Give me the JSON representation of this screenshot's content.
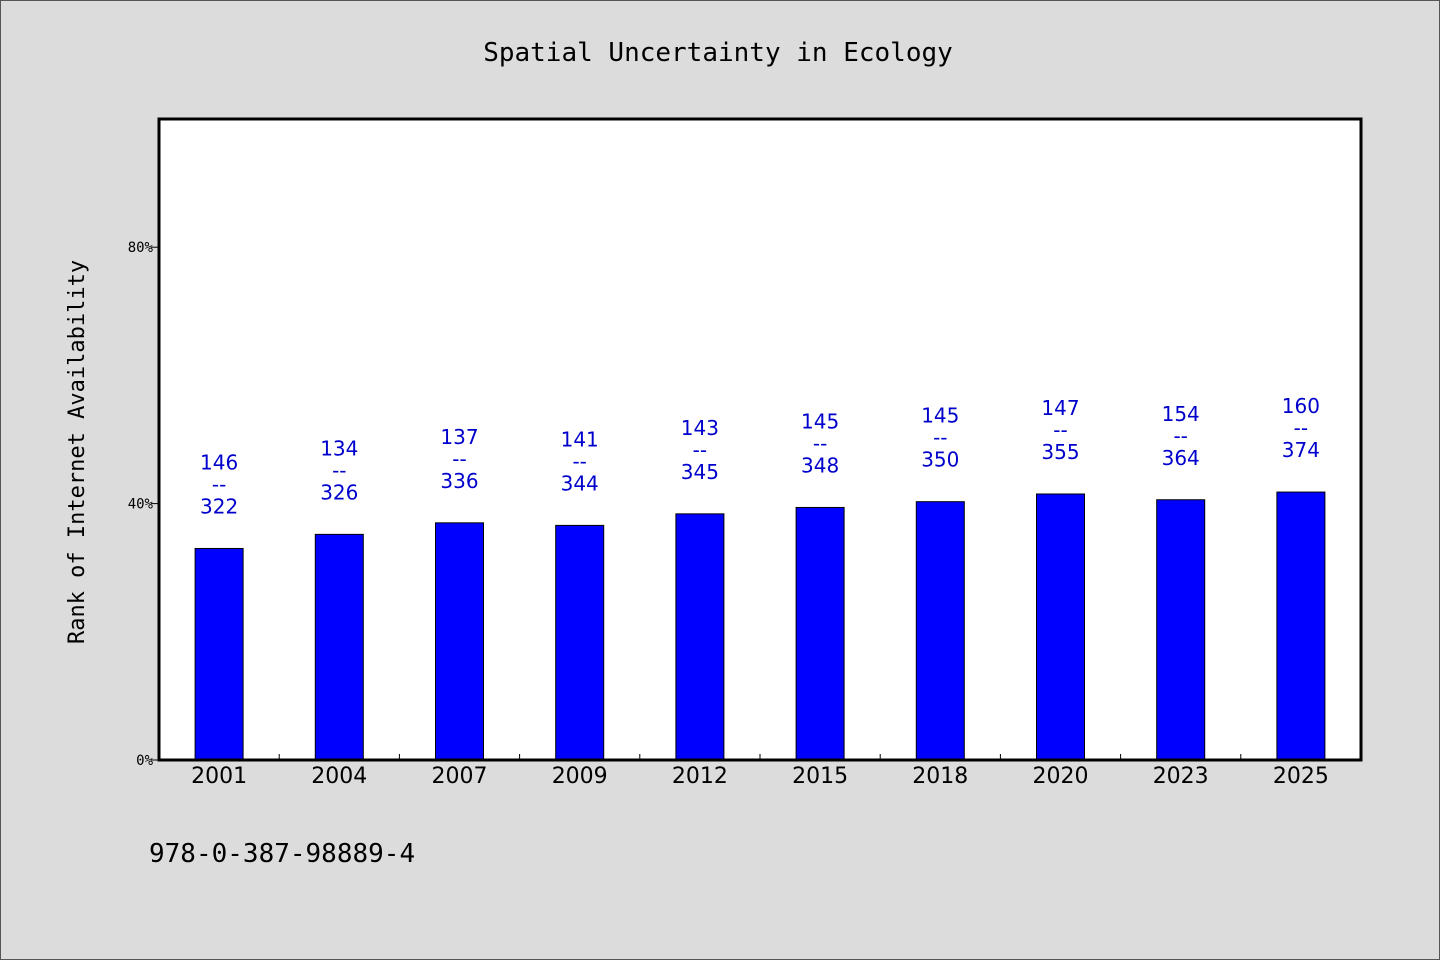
{
  "chart_data": {
    "type": "bar",
    "title": "Spatial Uncertainty in Ecology",
    "xlabel": "",
    "ylabel": "Rank of Internet Availability",
    "ylim": [
      0,
      100
    ],
    "y_ticks": [
      0,
      40,
      80
    ],
    "y_tick_labels": [
      "0%",
      "40%",
      "80%"
    ],
    "grid": false,
    "categories": [
      "2001",
      "2004",
      "2007",
      "2009",
      "2012",
      "2015",
      "2018",
      "2020",
      "2023",
      "2025"
    ],
    "series": [
      {
        "values": [
          33,
          35.2,
          37,
          36.6,
          38.4,
          39.4,
          40.3,
          41.5,
          40.6,
          41.8
        ]
      }
    ],
    "data_labels": [
      {
        "top": "146",
        "sep": "--",
        "bottom": "322"
      },
      {
        "top": "134",
        "sep": "--",
        "bottom": "326"
      },
      {
        "top": "137",
        "sep": "--",
        "bottom": "336"
      },
      {
        "top": "141",
        "sep": "--",
        "bottom": "344"
      },
      {
        "top": "143",
        "sep": "--",
        "bottom": "345"
      },
      {
        "top": "145",
        "sep": "--",
        "bottom": "348"
      },
      {
        "top": "145",
        "sep": "--",
        "bottom": "350"
      },
      {
        "top": "147",
        "sep": "--",
        "bottom": "355"
      },
      {
        "top": "154",
        "sep": "--",
        "bottom": "364"
      },
      {
        "top": "160",
        "sep": "--",
        "bottom": "374"
      }
    ],
    "annotations": [
      "978-0-387-98889-4"
    ]
  },
  "colors": {
    "background": "#dcdcdc",
    "plot_background": "#ffffff",
    "bar": "#0000ff",
    "data_label": "#0000cc",
    "axis": "#000000"
  }
}
